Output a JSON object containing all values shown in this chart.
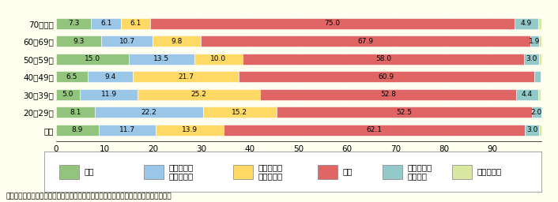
{
  "source": "資料）内閣府「都市と農山漁村の共生・対流に関する世論調査（平成７年）」より作成",
  "categories": [
    "総数",
    "20～29歳",
    "30～39歳",
    "40～49歳",
    "50～59歳",
    "60～69歳",
    "70歳以上"
  ],
  "series": [
    {
      "label": "ある",
      "color": "#92c47d",
      "values": [
        8.9,
        8.1,
        5.0,
        6.5,
        15.0,
        9.3,
        7.3
      ]
    },
    {
      "label": "どちらかと\nいうとある",
      "color": "#9ac7e8",
      "values": [
        11.7,
        22.2,
        11.9,
        9.4,
        13.5,
        10.7,
        6.1
      ]
    },
    {
      "label": "どちらかと\nいうとない",
      "color": "#ffd966",
      "values": [
        13.9,
        15.2,
        25.2,
        21.7,
        10.0,
        9.8,
        6.1
      ]
    },
    {
      "label": "ない",
      "color": "#e06666",
      "values": [
        62.1,
        52.5,
        52.8,
        60.9,
        58.0,
        67.9,
        75.0
      ]
    },
    {
      "label": "どちらとも\nいえない",
      "color": "#93c9c9",
      "values": [
        3.0,
        2.0,
        4.4,
        1.4,
        3.0,
        1.9,
        4.9
      ]
    },
    {
      "label": "わからない",
      "color": "#d9e8a0",
      "values": [
        0.4,
        0.0,
        0.6,
        0.0,
        0.5,
        0.5,
        0.6
      ]
    }
  ],
  "xlim": [
    0,
    100
  ],
  "xticks": [
    0,
    10,
    20,
    30,
    40,
    50,
    60,
    70,
    80,
    90,
    100
  ],
  "background_color": "#fffff0",
  "bar_height": 0.62,
  "fontsize_label": 7.5,
  "fontsize_tick": 7.5,
  "fontsize_bar": 6.5,
  "fontsize_legend": 7.5,
  "fontsize_source": 6.5
}
